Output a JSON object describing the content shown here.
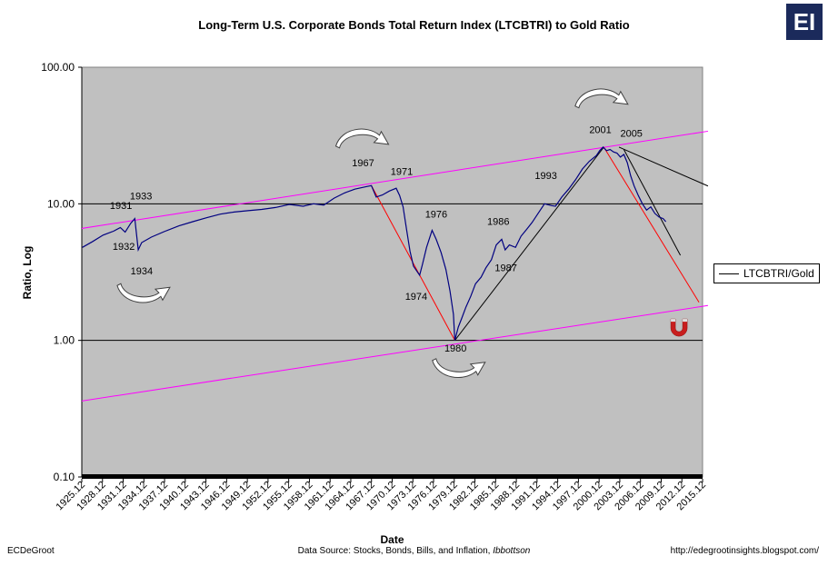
{
  "header": {
    "title": "Long-Term U.S. Corporate Bonds Total Return Index (LTCBTRI) to Gold Ratio",
    "logo_text": "EI"
  },
  "footer": {
    "author": "ECDeGroot",
    "source_prefix": "Data Source:  Stocks, Bonds, Bills, and Inflation, ",
    "source_publisher": "Ibbottson",
    "url": "http://edegrootinsights.blogspot.com/"
  },
  "legend": {
    "label": "LTCBTRI/Gold"
  },
  "chart_data": {
    "type": "line",
    "title": "Long-Term U.S. Corporate Bonds Total Return Index (LTCBTRI) to Gold Ratio",
    "xlabel": "Date",
    "ylabel": "Ratio, Log",
    "yscale": "log",
    "ylim": [
      0.1,
      100
    ],
    "xlim": [
      1925.917,
      2015.917
    ],
    "y_ticks": [
      "0.10",
      "1.00",
      "10.00",
      "100.00"
    ],
    "x_ticks": [
      "1925.12",
      "1928.12",
      "1931.12",
      "1934.12",
      "1937.12",
      "1940.12",
      "1943.12",
      "1946.12",
      "1949.12",
      "1952.12",
      "1955.12",
      "1958.12",
      "1961.12",
      "1964.12",
      "1967.12",
      "1970.12",
      "1973.12",
      "1976.12",
      "1979.12",
      "1982.12",
      "1985.12",
      "1988.12",
      "1991.12",
      "1994.12",
      "1997.12",
      "2000.12",
      "2003.12",
      "2006.12",
      "2009.12",
      "2012.12",
      "2015.12"
    ],
    "grid": "horizontal at 1.00 and 10.00",
    "legend_position": "right",
    "colors": {
      "plot_bg": "#c0c0c0",
      "series": "#000080",
      "channel": "#ff00ff",
      "decline": "#ff0000",
      "trend": "#000000"
    },
    "series": [
      {
        "name": "LTCBTRI/Gold",
        "points": [
          [
            1926.0,
            4.8
          ],
          [
            1927.5,
            5.3
          ],
          [
            1929.0,
            5.9
          ],
          [
            1930.5,
            6.3
          ],
          [
            1931.5,
            6.7
          ],
          [
            1932.2,
            6.2
          ],
          [
            1933.0,
            7.2
          ],
          [
            1933.6,
            7.8
          ],
          [
            1934.1,
            4.6
          ],
          [
            1934.6,
            5.2
          ],
          [
            1936.0,
            5.7
          ],
          [
            1938.0,
            6.3
          ],
          [
            1940.0,
            6.9
          ],
          [
            1942.0,
            7.4
          ],
          [
            1944.0,
            7.9
          ],
          [
            1946.0,
            8.4
          ],
          [
            1948.0,
            8.7
          ],
          [
            1950.0,
            8.9
          ],
          [
            1952.0,
            9.1
          ],
          [
            1954.0,
            9.4
          ],
          [
            1956.0,
            9.9
          ],
          [
            1958.0,
            9.6
          ],
          [
            1959.5,
            10.0
          ],
          [
            1961.0,
            9.8
          ],
          [
            1962.5,
            11.0
          ],
          [
            1964.0,
            12.0
          ],
          [
            1965.5,
            12.8
          ],
          [
            1967.0,
            13.3
          ],
          [
            1967.9,
            13.6
          ],
          [
            1968.6,
            11.2
          ],
          [
            1969.5,
            11.6
          ],
          [
            1970.5,
            12.4
          ],
          [
            1971.5,
            13.0
          ],
          [
            1972.0,
            11.5
          ],
          [
            1972.5,
            9.5
          ],
          [
            1973.0,
            6.5
          ],
          [
            1973.5,
            4.5
          ],
          [
            1974.0,
            3.5
          ],
          [
            1974.9,
            3.0
          ],
          [
            1975.3,
            3.6
          ],
          [
            1975.9,
            4.8
          ],
          [
            1976.7,
            6.4
          ],
          [
            1977.3,
            5.5
          ],
          [
            1978.0,
            4.4
          ],
          [
            1978.7,
            3.3
          ],
          [
            1979.3,
            2.3
          ],
          [
            1979.8,
            1.55
          ],
          [
            1980.0,
            1.0
          ],
          [
            1980.5,
            1.25
          ],
          [
            1981.0,
            1.45
          ],
          [
            1981.6,
            1.75
          ],
          [
            1982.3,
            2.1
          ],
          [
            1983.0,
            2.6
          ],
          [
            1983.8,
            2.9
          ],
          [
            1984.5,
            3.4
          ],
          [
            1985.3,
            3.9
          ],
          [
            1986.0,
            5.0
          ],
          [
            1986.8,
            5.5
          ],
          [
            1987.3,
            4.6
          ],
          [
            1987.9,
            5.0
          ],
          [
            1988.8,
            4.8
          ],
          [
            1989.6,
            5.8
          ],
          [
            1990.4,
            6.5
          ],
          [
            1991.2,
            7.3
          ],
          [
            1992.0,
            8.4
          ],
          [
            1993.0,
            10.0
          ],
          [
            1994.0,
            9.7
          ],
          [
            1994.6,
            9.6
          ],
          [
            1995.5,
            11.2
          ],
          [
            1996.5,
            12.8
          ],
          [
            1997.5,
            15.0
          ],
          [
            1998.5,
            18.0
          ],
          [
            1999.5,
            20.5
          ],
          [
            2000.5,
            22.5
          ],
          [
            2001.0,
            24.5
          ],
          [
            2001.5,
            26.0
          ],
          [
            2002.0,
            24.5
          ],
          [
            2002.5,
            25.0
          ],
          [
            2003.0,
            24.0
          ],
          [
            2003.5,
            23.5
          ],
          [
            2004.0,
            22.0
          ],
          [
            2004.5,
            23.0
          ],
          [
            2005.0,
            20.0
          ],
          [
            2005.5,
            16.0
          ],
          [
            2006.0,
            13.5
          ],
          [
            2006.6,
            11.5
          ],
          [
            2007.2,
            10.0
          ],
          [
            2007.8,
            9.0
          ],
          [
            2008.4,
            9.5
          ],
          [
            2009.0,
            8.5
          ],
          [
            2009.6,
            8.0
          ],
          [
            2010.2,
            7.8
          ],
          [
            2010.6,
            7.4
          ]
        ]
      }
    ],
    "overlay_lines": [
      {
        "kind": "channel-upper",
        "color": "#ff00ff",
        "from": [
          1925.9,
          6.6
        ],
        "to": [
          2016.7,
          34.0
        ]
      },
      {
        "kind": "channel-lower",
        "color": "#ff00ff",
        "from": [
          1925.9,
          0.36
        ],
        "to": [
          2016.7,
          1.8
        ]
      },
      {
        "kind": "decline",
        "color": "#ff0000",
        "from": [
          1967.9,
          13.6
        ],
        "to": [
          1980.0,
          1.0
        ]
      },
      {
        "kind": "rise",
        "color": "#000000",
        "from": [
          1980.0,
          1.0
        ],
        "to": [
          2001.6,
          26.0
        ]
      },
      {
        "kind": "decline",
        "color": "#ff0000",
        "from": [
          2001.6,
          26.0
        ],
        "to": [
          2015.4,
          1.9
        ]
      },
      {
        "kind": "trend",
        "color": "#000000",
        "from": [
          2003.8,
          26.0
        ],
        "to": [
          2016.7,
          13.5
        ]
      },
      {
        "kind": "trend",
        "color": "#000000",
        "from": [
          2004.5,
          25.0
        ],
        "to": [
          2012.7,
          4.2
        ]
      }
    ],
    "annotations": [
      {
        "text": "1931",
        "x": 1931.6,
        "y": 9.2
      },
      {
        "text": "1932",
        "x": 1932.0,
        "y": 4.6
      },
      {
        "text": "1933",
        "x": 1934.5,
        "y": 10.8
      },
      {
        "text": "1934",
        "x": 1934.6,
        "y": 3.05
      },
      {
        "text": "1967",
        "x": 1966.7,
        "y": 18.8
      },
      {
        "text": "1971",
        "x": 1972.3,
        "y": 16.3
      },
      {
        "text": "1974",
        "x": 1974.4,
        "y": 1.98
      },
      {
        "text": "1976",
        "x": 1977.3,
        "y": 7.9
      },
      {
        "text": "1980",
        "x": 1980.1,
        "y": 0.83
      },
      {
        "text": "1986",
        "x": 1986.3,
        "y": 7.0
      },
      {
        "text": "1987",
        "x": 1987.4,
        "y": 3.2
      },
      {
        "text": "1993",
        "x": 1993.2,
        "y": 15.2
      },
      {
        "text": "2001",
        "x": 2001.1,
        "y": 33.0
      },
      {
        "text": "2005",
        "x": 2005.6,
        "y": 31.0
      }
    ],
    "turn_markers": [
      {
        "name": "turn-up-1934",
        "x": 1935.0,
        "y": 2.3,
        "direction": "up"
      },
      {
        "name": "turn-down-1967",
        "x": 1966.7,
        "y": 29.0,
        "direction": "down"
      },
      {
        "name": "turn-up-1980",
        "x": 1980.7,
        "y": 0.65,
        "direction": "up"
      },
      {
        "name": "turn-down-2001",
        "x": 2001.4,
        "y": 57.0,
        "direction": "down"
      }
    ],
    "magnet_marker": {
      "x": 2012.5,
      "y": 1.25
    }
  }
}
